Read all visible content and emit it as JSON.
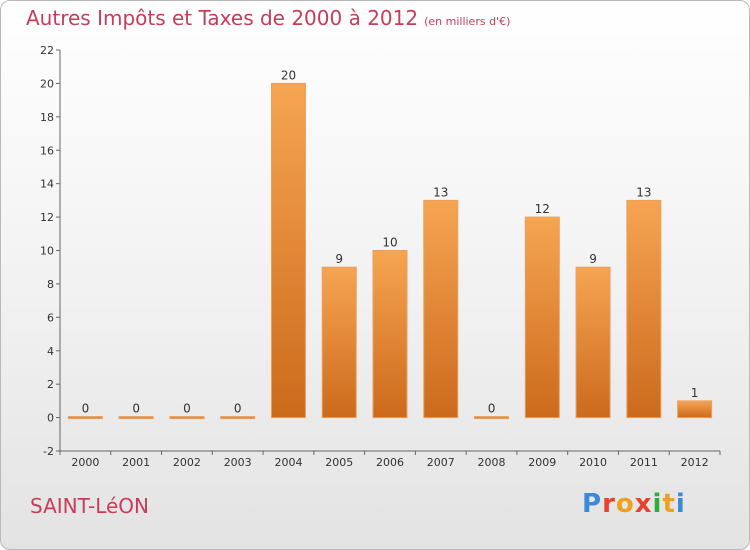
{
  "header": {
    "title": "Autres Impôts et Taxes de 2000 à 2012",
    "subtitle": "(en milliers d'€)"
  },
  "footer": {
    "place": "SAINT-LéON",
    "logo": "Proxiti"
  },
  "colors": {
    "bar_top": "#f6a552",
    "bar_bottom": "#cc6a1c",
    "title": "#c83c5a",
    "axis": "#555555"
  },
  "chart_data": {
    "type": "bar",
    "title": "Autres Impôts et Taxes de 2000 à 2012",
    "subtitle": "(en milliers d'€)",
    "categories": [
      "2000",
      "2001",
      "2002",
      "2003",
      "2004",
      "2005",
      "2006",
      "2007",
      "2008",
      "2009",
      "2010",
      "2011",
      "2012"
    ],
    "values": [
      0,
      0,
      0,
      0,
      20,
      9,
      10,
      13,
      0,
      12,
      9,
      13,
      1
    ],
    "ylim": [
      -2,
      22
    ],
    "yticks": [
      -2,
      0,
      2,
      4,
      6,
      8,
      10,
      12,
      14,
      16,
      18,
      20,
      22
    ],
    "grid": false,
    "legend": "none"
  }
}
